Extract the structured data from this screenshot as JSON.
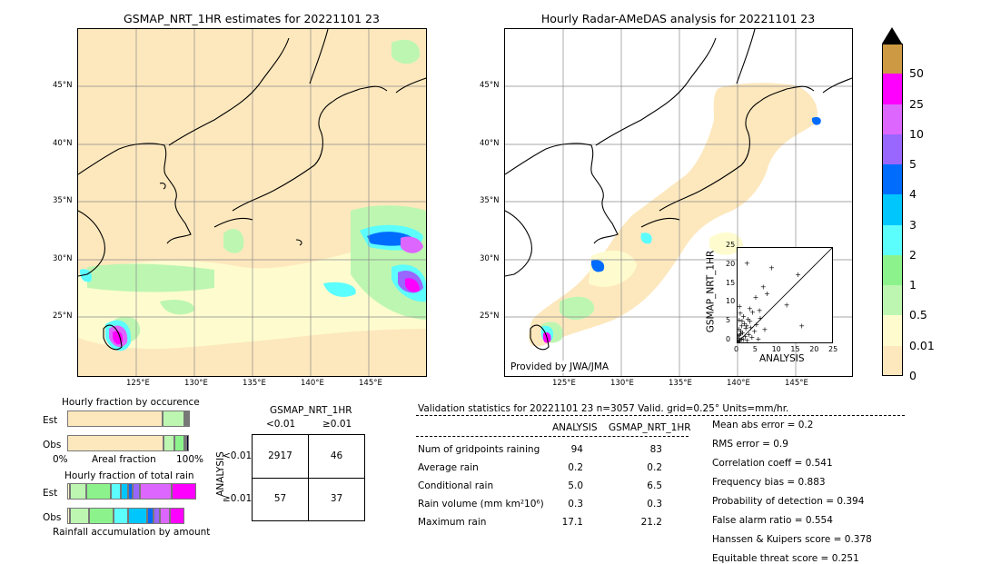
{
  "left_map": {
    "title": "GSMAP_NRT_1HR estimates for 20221101 23",
    "lat_labels": [
      "45°N",
      "40°N",
      "35°N",
      "30°N",
      "25°N"
    ],
    "lon_labels": [
      "125°E",
      "130°E",
      "135°E",
      "140°E",
      "145°E"
    ]
  },
  "right_map": {
    "title": "Hourly Radar-AMeDAS analysis for 20221101 23",
    "lat_labels": [
      "45°N",
      "40°N",
      "35°N",
      "30°N",
      "25°N"
    ],
    "lon_labels": [
      "125°E",
      "130°E",
      "135°E",
      "140°E",
      "145°E"
    ],
    "credit": "Provided by JWA/JMA"
  },
  "colorbar": {
    "levels": [
      "0",
      "0.01",
      "0.5",
      "1",
      "2",
      "3",
      "4",
      "5",
      "10",
      "25",
      "50"
    ],
    "colors": [
      "#fde8bd",
      "#fefccf",
      "#bdf6b1",
      "#8cf38c",
      "#5cfdfd",
      "#00c6fe",
      "#006cfe",
      "#9966fe",
      "#dd66fe",
      "#fe00fe",
      "#cd9942"
    ]
  },
  "chart_data": [
    {
      "type": "scatter",
      "title": "",
      "xlabel": "ANALYSIS",
      "ylabel": "GSMAP_NRT_1HR",
      "xlim": [
        0,
        25
      ],
      "ylim": [
        0,
        25
      ],
      "ticks": [
        "0",
        "5",
        "10",
        "15",
        "20",
        "25"
      ],
      "points": [
        [
          0.2,
          0.5
        ],
        [
          0.3,
          1.2
        ],
        [
          0.5,
          2.0
        ],
        [
          0.6,
          0.4
        ],
        [
          0.8,
          3.1
        ],
        [
          1.0,
          1.0
        ],
        [
          1.1,
          4.5
        ],
        [
          0.4,
          6.0
        ],
        [
          0.7,
          7.8
        ],
        [
          1.3,
          2.6
        ],
        [
          1.5,
          0.8
        ],
        [
          1.8,
          5.1
        ],
        [
          2.0,
          1.7
        ],
        [
          2.2,
          3.8
        ],
        [
          2.5,
          0.6
        ],
        [
          2.8,
          6.2
        ],
        [
          3.0,
          2.2
        ],
        [
          3.2,
          9.0
        ],
        [
          3.5,
          4.0
        ],
        [
          3.8,
          1.4
        ],
        [
          4.0,
          8.0
        ],
        [
          4.5,
          3.0
        ],
        [
          4.8,
          12.0
        ],
        [
          5.0,
          4.8
        ],
        [
          5.5,
          1.0
        ],
        [
          6.0,
          6.5
        ],
        [
          6.8,
          14.8
        ],
        [
          7.2,
          3.5
        ],
        [
          2.5,
          21.0
        ],
        [
          9.0,
          19.8
        ],
        [
          13.0,
          10.0
        ],
        [
          16.0,
          18.0
        ],
        [
          17.0,
          4.5
        ],
        [
          0.1,
          0.2
        ],
        [
          0.2,
          1.8
        ],
        [
          0.3,
          3.6
        ],
        [
          0.9,
          2.4
        ],
        [
          1.2,
          5.8
        ],
        [
          0.5,
          9.6
        ],
        [
          1.6,
          7.0
        ],
        [
          2.4,
          4.4
        ],
        [
          3.3,
          5.6
        ],
        [
          5.8,
          8.5
        ],
        [
          7.8,
          13.0
        ]
      ]
    },
    {
      "type": "table",
      "title": "GSMAP_NRT_1HR",
      "col_labels": [
        "<0.01",
        "≥0.01"
      ],
      "row_axis_label": "ANALYSIS",
      "row_labels": [
        "<0.01",
        "≥0.01"
      ],
      "cells": [
        [
          "2917",
          "46"
        ],
        [
          "57",
          "37"
        ]
      ]
    },
    {
      "type": "bar",
      "title": "Hourly fraction by occurence",
      "categories": [
        "Est",
        "Obs"
      ],
      "xlabels": [
        "0%",
        "Areal fraction",
        "100%"
      ],
      "series": [
        {
          "values": [
            0.78,
            0.79
          ]
        },
        {
          "values": [
            0.18,
            0.09
          ]
        },
        {
          "values": [
            0.02,
            0.08
          ]
        },
        {
          "values": [
            0.01,
            0.02
          ]
        },
        {
          "values": [
            0.01,
            0.02
          ]
        }
      ]
    },
    {
      "type": "bar",
      "title": "Hourly fraction of total rain",
      "xlabel": "Rainfall accumulation by amount",
      "categories": [
        "Est",
        "Obs"
      ],
      "series": [
        {
          "values": [
            0.02,
            0.02
          ]
        },
        {
          "values": [
            0.14,
            0.16
          ]
        },
        {
          "values": [
            0.2,
            0.2
          ]
        },
        {
          "values": [
            0.08,
            0.12
          ]
        },
        {
          "values": [
            0.06,
            0.16
          ]
        },
        {
          "values": [
            0.04,
            0.05
          ]
        },
        {
          "values": [
            0.06,
            0.05
          ]
        },
        {
          "values": [
            0.26,
            0.08
          ]
        },
        {
          "values": [
            0.2,
            0.12
          ]
        }
      ]
    }
  ],
  "validation": {
    "header": "Validation statistics for 20221101 23  n=3057 Valid. grid=0.25° Units=mm/hr.",
    "col_analysis": "ANALYSIS",
    "col_gsmap": "GSMAP_NRT_1HR",
    "rows": [
      {
        "label": "Num of gridpoints raining",
        "a": "94",
        "g": "83"
      },
      {
        "label": "Average rain",
        "a": "0.2",
        "g": "0.2"
      },
      {
        "label": "Conditional rain",
        "a": "5.0",
        "g": "6.5"
      },
      {
        "label": "Rain volume (mm km²10⁶)",
        "a": "0.3",
        "g": "0.3"
      },
      {
        "label": "Maximum rain",
        "a": "17.1",
        "g": "21.2"
      }
    ],
    "scores": [
      "Mean abs error =    0.2",
      "RMS error =    0.9",
      "Correlation coeff =  0.541",
      "Frequency bias =  0.883",
      "Probability of detection =  0.394",
      "False alarm ratio =  0.554",
      "Hanssen & Kuipers score =  0.378",
      "Equitable threat score =  0.251"
    ]
  }
}
